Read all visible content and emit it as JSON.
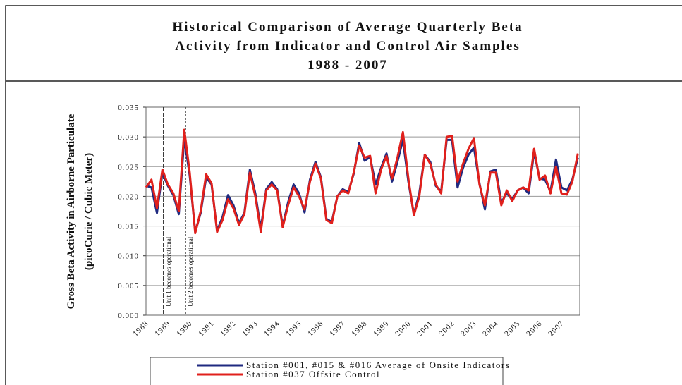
{
  "chart_data": {
    "type": "line",
    "title": [
      "Historical Comparison of Average Quarterly Beta",
      "Activity from Indicator and Control Air Samples",
      "1988 - 2007"
    ],
    "y_label": [
      "Gross Beta Activity in Airborne Particulate",
      "(picoCurie / Cubic Meter)"
    ],
    "categories": [
      "1988",
      null,
      null,
      null,
      "1989",
      null,
      null,
      null,
      "1990",
      null,
      null,
      null,
      "1991",
      null,
      null,
      null,
      "1992",
      null,
      null,
      null,
      "1993",
      null,
      null,
      null,
      "1994",
      null,
      null,
      null,
      "1995",
      null,
      null,
      null,
      "1996",
      null,
      null,
      null,
      "1997",
      null,
      null,
      null,
      "1998",
      null,
      null,
      null,
      "1999",
      null,
      null,
      null,
      "2000",
      null,
      null,
      null,
      "2001",
      null,
      null,
      null,
      "2002",
      null,
      null,
      null,
      "2003",
      null,
      null,
      null,
      "2004",
      null,
      null,
      null,
      "2005",
      null,
      null,
      null,
      "2006",
      null,
      null,
      null,
      "2007",
      null,
      null,
      null
    ],
    "series": [
      {
        "name": "Station #001, #015 & #016 Average of Onsite Indicators",
        "color": "#1f2a80",
        "values": [
          0.0218,
          0.0215,
          0.0172,
          0.024,
          0.0218,
          0.0202,
          0.017,
          0.0298,
          0.0235,
          0.014,
          0.0172,
          0.0232,
          0.022,
          0.0142,
          0.0165,
          0.0202,
          0.0185,
          0.0155,
          0.0172,
          0.0245,
          0.0205,
          0.0145,
          0.0212,
          0.0224,
          0.0212,
          0.015,
          0.019,
          0.022,
          0.0205,
          0.0173,
          0.0228,
          0.0258,
          0.0232,
          0.0162,
          0.0157,
          0.02,
          0.0212,
          0.0207,
          0.0238,
          0.029,
          0.026,
          0.0266,
          0.022,
          0.0248,
          0.0272,
          0.0225,
          0.0258,
          0.0295,
          0.0225,
          0.017,
          0.0205,
          0.027,
          0.0258,
          0.0218,
          0.0208,
          0.0295,
          0.0295,
          0.0215,
          0.0248,
          0.027,
          0.0282,
          0.0222,
          0.0178,
          0.0242,
          0.0245,
          0.019,
          0.0205,
          0.0195,
          0.021,
          0.0215,
          0.0205,
          0.0275,
          0.023,
          0.0228,
          0.0208,
          0.0262,
          0.0215,
          0.021,
          0.0228,
          0.0265
        ]
      },
      {
        "name": "Station #037 Offsite Control",
        "color": "#e0201c",
        "values": [
          0.0215,
          0.0228,
          0.018,
          0.0245,
          0.022,
          0.0205,
          0.0175,
          0.0312,
          0.024,
          0.0138,
          0.0175,
          0.0237,
          0.0222,
          0.014,
          0.016,
          0.0195,
          0.018,
          0.0152,
          0.017,
          0.024,
          0.02,
          0.014,
          0.021,
          0.022,
          0.021,
          0.0148,
          0.0185,
          0.0215,
          0.02,
          0.0178,
          0.0225,
          0.0255,
          0.023,
          0.016,
          0.0155,
          0.02,
          0.021,
          0.0205,
          0.024,
          0.0285,
          0.0265,
          0.0268,
          0.0205,
          0.0245,
          0.0268,
          0.023,
          0.0265,
          0.0308,
          0.023,
          0.0168,
          0.02,
          0.027,
          0.0255,
          0.022,
          0.0205,
          0.03,
          0.0302,
          0.0225,
          0.0255,
          0.028,
          0.0298,
          0.022,
          0.0185,
          0.024,
          0.024,
          0.0185,
          0.021,
          0.0192,
          0.021,
          0.0215,
          0.021,
          0.028,
          0.0228,
          0.0235,
          0.0205,
          0.025,
          0.0205,
          0.0203,
          0.0225,
          0.0272
        ]
      }
    ],
    "annotations": [
      {
        "text": "Unit 1 becomes operational",
        "x": 3.2
      },
      {
        "text": "Unit 2 becomes operational",
        "x": 7.25
      }
    ],
    "ylim": [
      0,
      0.035
    ],
    "yticks": [
      {
        "value": 0,
        "label": "0.000"
      },
      0.005,
      {
        "value": 0.01,
        "label": "0.010"
      },
      0.015,
      {
        "value": 0.02,
        "label": "0.020"
      },
      0.025,
      {
        "value": 0.03,
        "label": "0.030"
      },
      0.035
    ],
    "grid": true
  }
}
